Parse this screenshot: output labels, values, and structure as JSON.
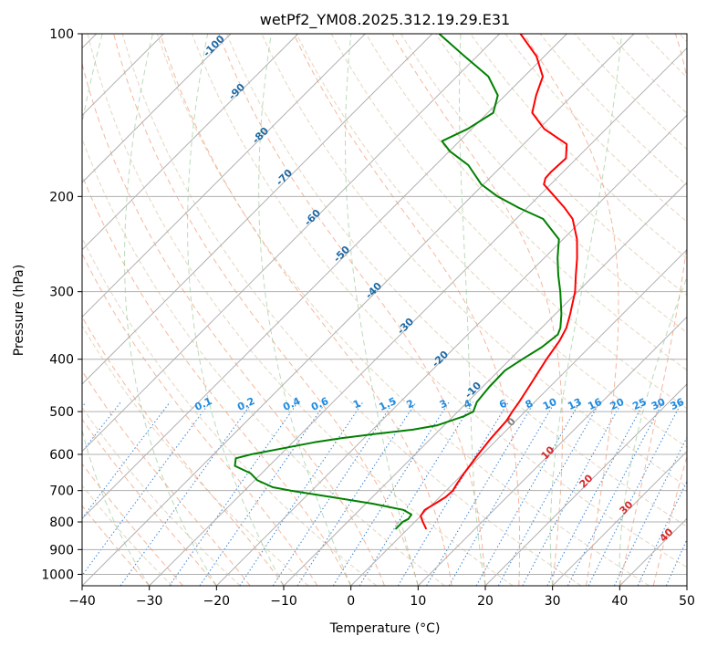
{
  "chart_data": {
    "type": "line",
    "subtype": "skew-T log-P diagram",
    "title": "wetPf2_YM08.2025.312.19.29.E31",
    "xlabel": "Temperature (°C)",
    "ylabel": "Pressure (hPa)",
    "xlim": [
      -40,
      50
    ],
    "ylim": [
      1050,
      100
    ],
    "y_scale": "log",
    "skew": "isotherms slanted to the right at 45°",
    "grid": true,
    "x_ticks": [
      "−40",
      "−30",
      "−20",
      "−10",
      "0",
      "10",
      "20",
      "30",
      "40",
      "50"
    ],
    "y_ticks": [
      "100",
      "200",
      "300",
      "400",
      "500",
      "600",
      "700",
      "800",
      "900",
      "1000"
    ],
    "series": [
      {
        "color": "#ff0000",
        "note": "temperature profile",
        "points": [
          [
            825,
            2.8
          ],
          [
            800,
            1.2
          ],
          [
            780,
            0.0
          ],
          [
            760,
            -0.3
          ],
          [
            740,
            0.3
          ],
          [
            720,
            0.9
          ],
          [
            700,
            1.0
          ],
          [
            680,
            0.6
          ],
          [
            650,
            0.1
          ],
          [
            600,
            -0.6
          ],
          [
            560,
            -1.1
          ],
          [
            520,
            -1.4
          ],
          [
            500,
            -1.9
          ],
          [
            480,
            -2.3
          ],
          [
            450,
            -3.1
          ],
          [
            400,
            -4.6
          ],
          [
            370,
            -5.4
          ],
          [
            350,
            -6.3
          ],
          [
            330,
            -7.8
          ],
          [
            300,
            -10.4
          ],
          [
            280,
            -12.7
          ],
          [
            260,
            -15.1
          ],
          [
            240,
            -17.9
          ],
          [
            220,
            -21.6
          ],
          [
            210,
            -24.4
          ],
          [
            200,
            -27.6
          ],
          [
            190,
            -31.0
          ],
          [
            185,
            -31.7
          ],
          [
            180,
            -31.8
          ],
          [
            170,
            -31.6
          ],
          [
            160,
            -33.6
          ],
          [
            150,
            -39.2
          ],
          [
            140,
            -43.4
          ],
          [
            130,
            -45.4
          ],
          [
            120,
            -47.2
          ],
          [
            110,
            -51.2
          ],
          [
            100,
            -56.9
          ]
        ]
      },
      {
        "color": "#008000",
        "note": "dewpoint profile",
        "points": [
          [
            825,
            -1.8
          ],
          [
            800,
            -1.8
          ],
          [
            790,
            -1.4
          ],
          [
            775,
            -1.6
          ],
          [
            760,
            -3.5
          ],
          [
            740,
            -9.0
          ],
          [
            720,
            -16.0
          ],
          [
            700,
            -23.1
          ],
          [
            690,
            -26.3
          ],
          [
            670,
            -29.6
          ],
          [
            650,
            -31.7
          ],
          [
            630,
            -35.1
          ],
          [
            610,
            -36.1
          ],
          [
            600,
            -34.4
          ],
          [
            580,
            -29.4
          ],
          [
            570,
            -26.8
          ],
          [
            560,
            -23.4
          ],
          [
            550,
            -19.0
          ],
          [
            540,
            -14.0
          ],
          [
            530,
            -11.0
          ],
          [
            510,
            -8.4
          ],
          [
            500,
            -7.7
          ],
          [
            480,
            -8.6
          ],
          [
            450,
            -9.0
          ],
          [
            420,
            -9.1
          ],
          [
            400,
            -8.2
          ],
          [
            380,
            -7.1
          ],
          [
            360,
            -6.6
          ],
          [
            350,
            -7.2
          ],
          [
            330,
            -9.1
          ],
          [
            300,
            -12.6
          ],
          [
            280,
            -15.3
          ],
          [
            260,
            -18.0
          ],
          [
            240,
            -20.6
          ],
          [
            220,
            -26.0
          ],
          [
            210,
            -31.2
          ],
          [
            200,
            -36.1
          ],
          [
            190,
            -40.3
          ],
          [
            175,
            -45.1
          ],
          [
            165,
            -49.9
          ],
          [
            158,
            -52.6
          ],
          [
            150,
            -50.6
          ],
          [
            140,
            -49.2
          ],
          [
            130,
            -51.1
          ],
          [
            120,
            -55.3
          ],
          [
            110,
            -61.9
          ],
          [
            100,
            -69.0
          ]
        ]
      }
    ],
    "isotherm_labels": [
      "-100",
      "-90",
      "-80",
      "-70",
      "-60",
      "-50",
      "-40",
      "-30",
      "-20",
      "-10"
    ],
    "mixing_ratio_labels": [
      "0.1",
      "0.2",
      "0.4",
      "0.6",
      "1",
      "1.5",
      "2",
      "3",
      "4",
      "6",
      "8",
      "10",
      "13",
      "16",
      "20",
      "25",
      "30",
      "36"
    ],
    "moist_adiabat_labels": [
      "0",
      "10",
      "20",
      "30",
      "40"
    ],
    "colors": {
      "isotherm": "#b0b0b0",
      "isobar": "#b0b0b0",
      "dry_adiabat": "#d2b48c",
      "moist_adiabat": "#f4a582",
      "moist_adiabat_labels": "#d62728",
      "zero_label": "#808080",
      "mixing_ratio": "#1f77d4",
      "mixing_ratio_labels": "#1f8be0",
      "isotherm_labels": "#1f6aa5",
      "green_dash": "#7fbf7f"
    }
  }
}
